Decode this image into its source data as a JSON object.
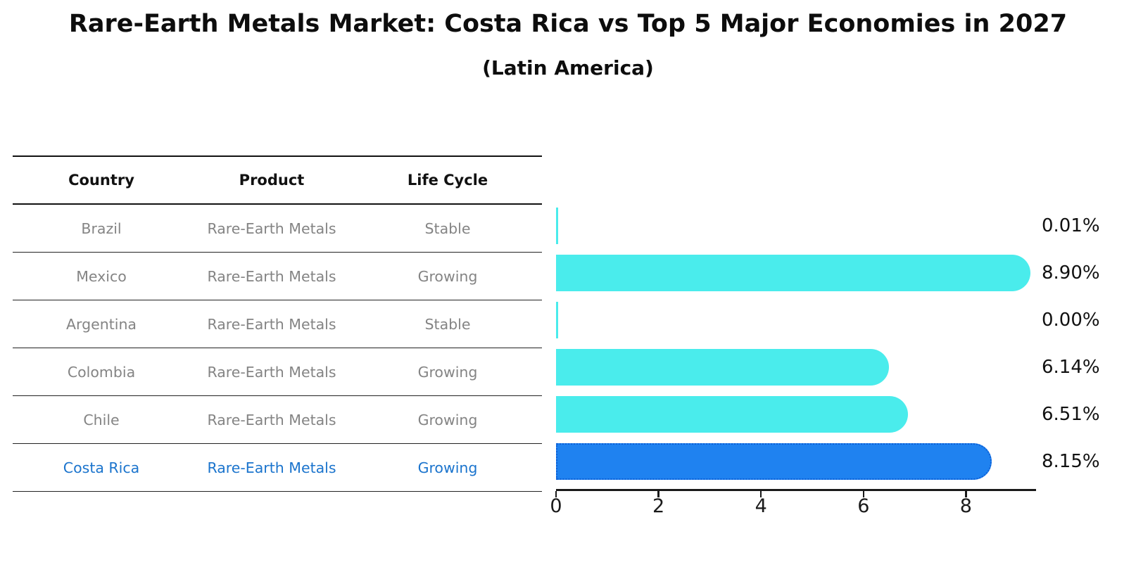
{
  "chart_data": {
    "type": "bar",
    "orientation": "horizontal",
    "title": "Rare-Earth Metals Market: Costa Rica vs Top 5 Major Economies in 2027",
    "subtitle": "(Latin America)",
    "table_headers": [
      "Country",
      "Product",
      "Life Cycle"
    ],
    "rows": [
      {
        "country": "Brazil",
        "product": "Rare-Earth Metals",
        "life_cycle": "Stable",
        "value": 0.01,
        "value_label": "0.01%",
        "highlight": false
      },
      {
        "country": "Mexico",
        "product": "Rare-Earth Metals",
        "life_cycle": "Growing",
        "value": 8.9,
        "value_label": "8.90%",
        "highlight": false
      },
      {
        "country": "Argentina",
        "product": "Rare-Earth Metals",
        "life_cycle": "Stable",
        "value": 0.0,
        "value_label": "0.00%",
        "highlight": false
      },
      {
        "country": "Colombia",
        "product": "Rare-Earth Metals",
        "life_cycle": "Growing",
        "value": 6.14,
        "value_label": "6.14%",
        "highlight": false
      },
      {
        "country": "Chile",
        "product": "Rare-Earth Metals",
        "life_cycle": "Growing",
        "value": 6.51,
        "value_label": "6.51%",
        "highlight": false
      },
      {
        "country": "Costa Rica",
        "product": "Rare-Earth Metals",
        "life_cycle": "Growing",
        "value": 8.15,
        "value_label": "8.15%",
        "highlight": true
      }
    ],
    "x_ticks": [
      "0",
      "2",
      "4",
      "6",
      "8"
    ],
    "xlim": [
      0,
      9.34
    ],
    "grid": false,
    "legend": "none",
    "colors": {
      "bar": "#4AECEC",
      "highlight_bar": "#1F82F0",
      "highlight_edge": "#0D5FD6",
      "highlight_text": "#1B74CD",
      "cell_text": "#848484",
      "header_text": "#111111",
      "axis": "#1A1A1A"
    }
  }
}
